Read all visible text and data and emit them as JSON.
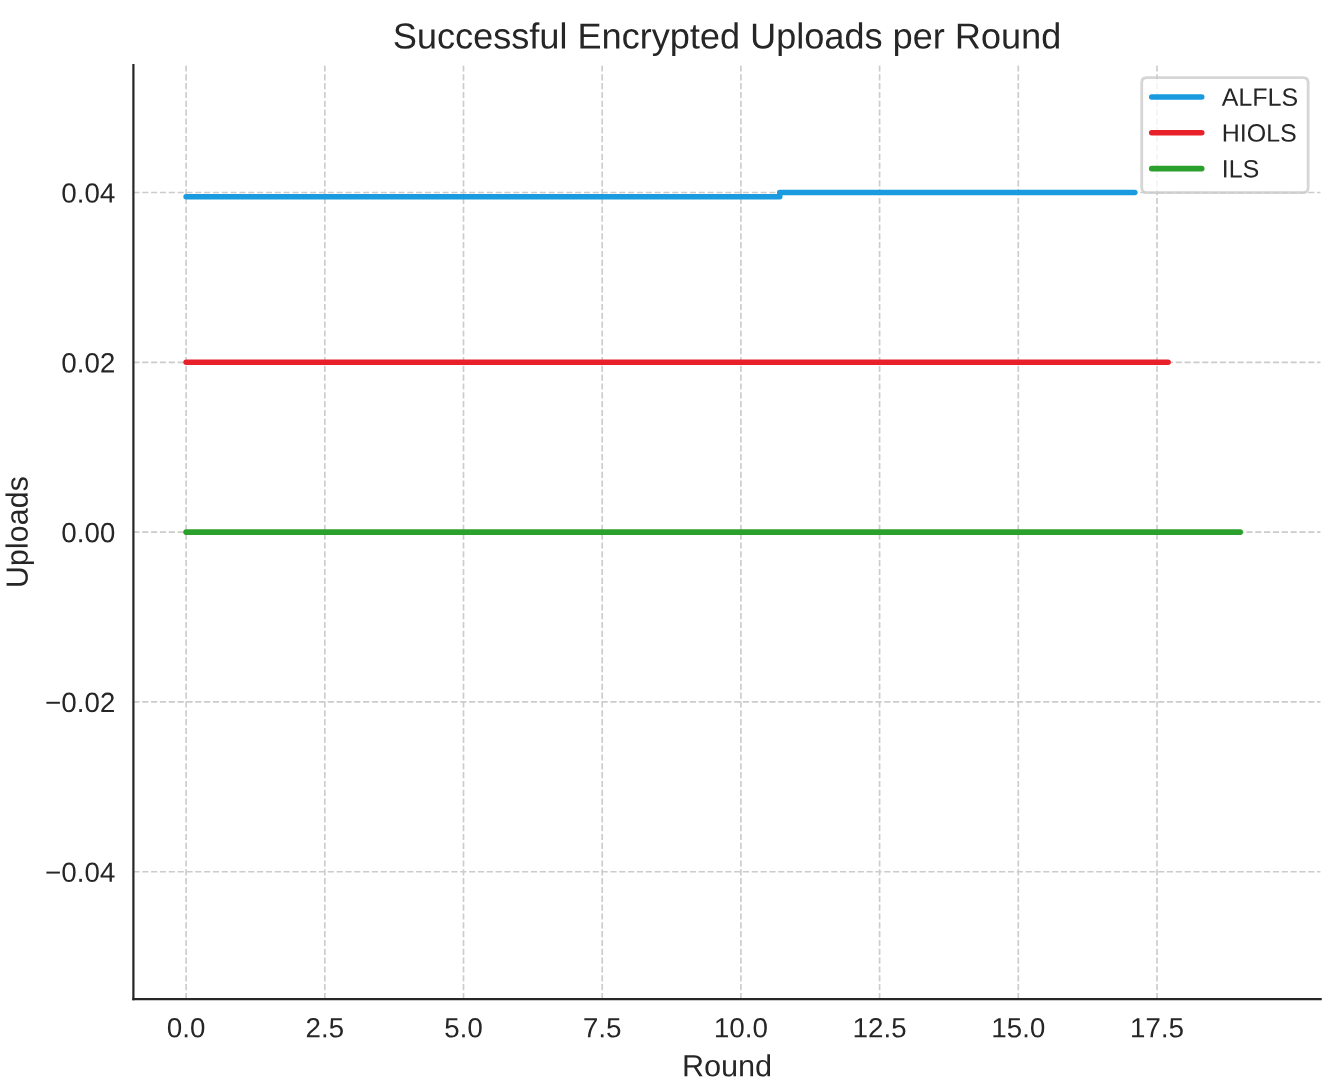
{
  "chart_data": {
    "type": "line",
    "title": "Successful Encrypted Uploads per Round",
    "xlabel": "Round",
    "ylabel": "Uploads",
    "series": [
      {
        "name": "ALFLS",
        "color": "#1a9be0",
        "x": [
          0,
          10.7,
          10.7,
          17.1
        ],
        "values": [
          0.0395,
          0.0395,
          0.04,
          0.04
        ]
      },
      {
        "name": "HIOLS",
        "color": "#e8202a",
        "x": [
          0,
          17.7
        ],
        "values": [
          0.02,
          0.02
        ]
      },
      {
        "name": "ILS",
        "color": "#2ca02c",
        "x": [
          0,
          19
        ],
        "values": [
          0,
          0
        ]
      }
    ],
    "xlim": [
      -0.95,
      20.45
    ],
    "xticks": [
      {
        "value": 0,
        "label": "0.0"
      },
      2.5,
      {
        "value": 5,
        "label": "5.0"
      },
      7.5,
      {
        "value": 10,
        "label": "10.0"
      },
      12.5,
      {
        "value": 15,
        "label": "15.0"
      },
      17.5
    ],
    "ylim": [
      -0.055,
      0.055
    ],
    "yticks": [
      {
        "value": -0.04,
        "label": "−0.04"
      },
      {
        "value": -0.02,
        "label": "−0.02"
      },
      {
        "value": 0,
        "label": "0.00"
      },
      {
        "value": 0.02,
        "label": "0.02"
      },
      {
        "value": 0.04,
        "label": "0.04"
      }
    ],
    "grid": true,
    "legend": "top right",
    "line_style": "solid",
    "marker": "none"
  }
}
